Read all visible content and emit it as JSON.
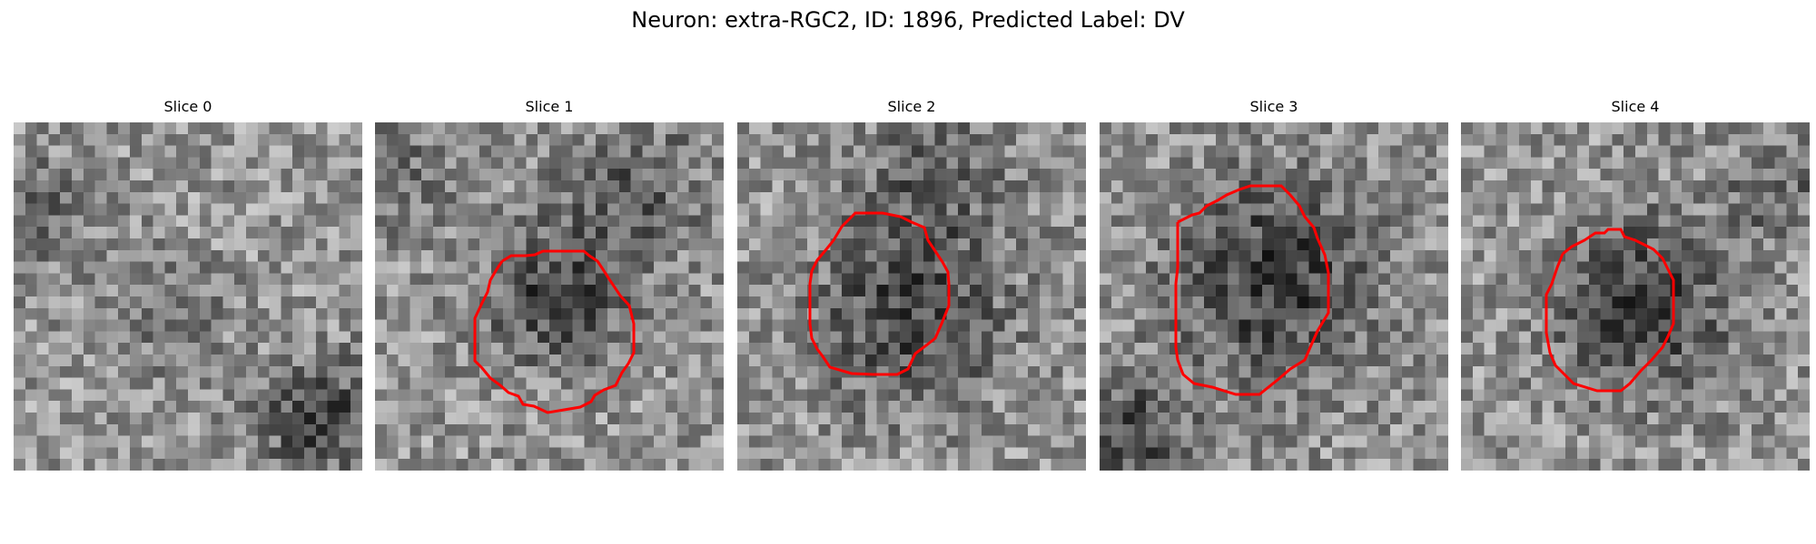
{
  "figure": {
    "title": "Neuron: extra-RGC2, ID: 1896, Predicted Label: DV"
  },
  "contour_color": "#ff0000",
  "slices": [
    {
      "label": "Slice 0",
      "has_contour": false
    },
    {
      "label": "Slice 1",
      "has_contour": true
    },
    {
      "label": "Slice 2",
      "has_contour": true
    },
    {
      "label": "Slice 3",
      "has_contour": true
    },
    {
      "label": "Slice 4",
      "has_contour": true
    }
  ]
}
